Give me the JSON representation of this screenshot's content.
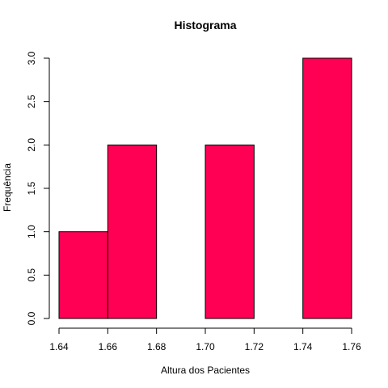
{
  "chart_data": {
    "type": "bar",
    "title": "Histograma",
    "xlabel": "Altura dos Pacientes",
    "ylabel": "Frequência",
    "bins": [
      {
        "start": 1.64,
        "end": 1.66,
        "count": 1
      },
      {
        "start": 1.66,
        "end": 1.68,
        "count": 2
      },
      {
        "start": 1.68,
        "end": 1.7,
        "count": 0
      },
      {
        "start": 1.7,
        "end": 1.72,
        "count": 2
      },
      {
        "start": 1.72,
        "end": 1.74,
        "count": 0
      },
      {
        "start": 1.74,
        "end": 1.76,
        "count": 3
      }
    ],
    "xlim": [
      1.64,
      1.76
    ],
    "ylim": [
      0,
      3
    ],
    "xticks": [
      "1.64",
      "1.66",
      "1.68",
      "1.70",
      "1.72",
      "1.74",
      "1.76"
    ],
    "yticks": [
      "0.0",
      "0.5",
      "1.0",
      "1.5",
      "2.0",
      "2.5",
      "3.0"
    ],
    "bar_color": "#ff0055",
    "grid": false
  }
}
